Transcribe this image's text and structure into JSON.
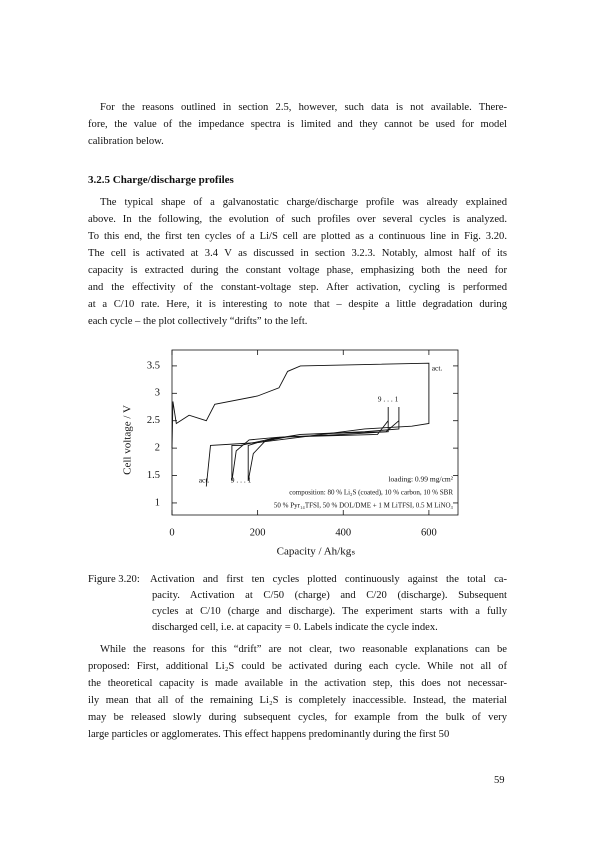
{
  "paragraphs": [
    {
      "lines": [
        "For the reasons outlined in section 2.5, however, such data is not available. There-",
        "fore, the value of the impedance spectra is limited and they cannot be used for model",
        "calibration below."
      ]
    },
    {
      "lines": [
        "The typical shape of a galvanostatic charge/discharge profile was already explained",
        "above. In the following, the evolution of such profiles over several cycles is analyzed.",
        "To this end, the first ten cycles of a Li/S cell are plotted as a continuous line in Fig. 3.20.",
        "The cell is activated at 3.4 V as discussed in section 3.2.3. Notably, almost half of its",
        "capacity is extracted during the constant voltage phase, emphasizing both the need for",
        "and the effectivity of the constant-voltage step. After activation, cycling is performed",
        "at a C/10 rate. Here, it is interesting to note that – despite a little degradation during",
        "each cycle – the plot collectively “drifts” to the left."
      ]
    },
    {
      "lines": [
        "While the reasons for this “drift” are not clear, two reasonable explanations can be",
        "proposed: First, additional Li₂S could be activated during each cycle. While not all of",
        "the theoretical capacity is made available in the activation step, this does not necessar-",
        "ily mean that all of the remaining Li₂S is completely inaccessible. Instead, the material",
        "may be released slowly during subsequent cycles, for example from the bulk of very",
        "large particles or agglomerates. This effect happens predominantly during the first 50"
      ]
    }
  ],
  "section_heading": "3.2.5  Charge/discharge profiles",
  "caption": {
    "label": "Figure 3.20:",
    "lines": [
      "Activation and first ten cycles plotted continuously against the total ca-",
      "pacity. Activation at C/50 (charge) and C/20 (discharge). Subsequent",
      "cycles at C/10 (charge and discharge). The experiment starts with a fully",
      "discharged cell, i.e. at capacity = 0. Labels indicate the cycle index."
    ]
  },
  "page_number": "59",
  "chart_data": {
    "type": "line",
    "xlabel": "Capacity / Ah/kgₛ",
    "ylabel": "Cell voltage / V",
    "xlim": [
      0,
      668
    ],
    "ylim": [
      0.78,
      3.79
    ],
    "xticks": [
      0,
      200,
      400,
      600
    ],
    "yticks": [
      1,
      1.5,
      2,
      2.5,
      3,
      3.5
    ],
    "color": "#111111",
    "series": [
      {
        "x": [
          0,
          2,
          10,
          40,
          80,
          100,
          200,
          250,
          270,
          300,
          600,
          600,
          560,
          450,
          300,
          200,
          90,
          80
        ],
        "values": [
          2.0,
          2.85,
          2.45,
          2.6,
          2.5,
          2.8,
          2.95,
          3.1,
          3.4,
          3.5,
          3.55,
          2.45,
          2.4,
          2.35,
          2.2,
          2.1,
          2.05,
          1.3
        ]
      },
      {
        "x": [
          178,
          190,
          220,
          300,
          500,
          530,
          530,
          530,
          450,
          300,
          200,
          178,
          178
        ],
        "values": [
          1.4,
          1.9,
          2.15,
          2.25,
          2.3,
          2.5,
          2.75,
          2.35,
          2.3,
          2.25,
          2.1,
          2.05,
          1.4
        ]
      },
      {
        "x": [
          140,
          150,
          180,
          250,
          480,
          505,
          505,
          505,
          400,
          250,
          160,
          140,
          140
        ],
        "values": [
          1.4,
          1.95,
          2.15,
          2.2,
          2.25,
          2.5,
          2.75,
          2.3,
          2.25,
          2.2,
          2.05,
          2.05,
          1.4
        ]
      }
    ],
    "annotations": [
      "act.",
      "9 . . . 1",
      "act.",
      "9 . . . 1",
      "loading: 0.99 mg/cm²",
      "composition: 80 % Li₂S (coated), 10 % carbon, 10 % SBR",
      "50 % Pyr₁₄TFSI, 50 % DOL/DME + 1 M LiTFSI, 0.5 M LiNO₃"
    ]
  }
}
